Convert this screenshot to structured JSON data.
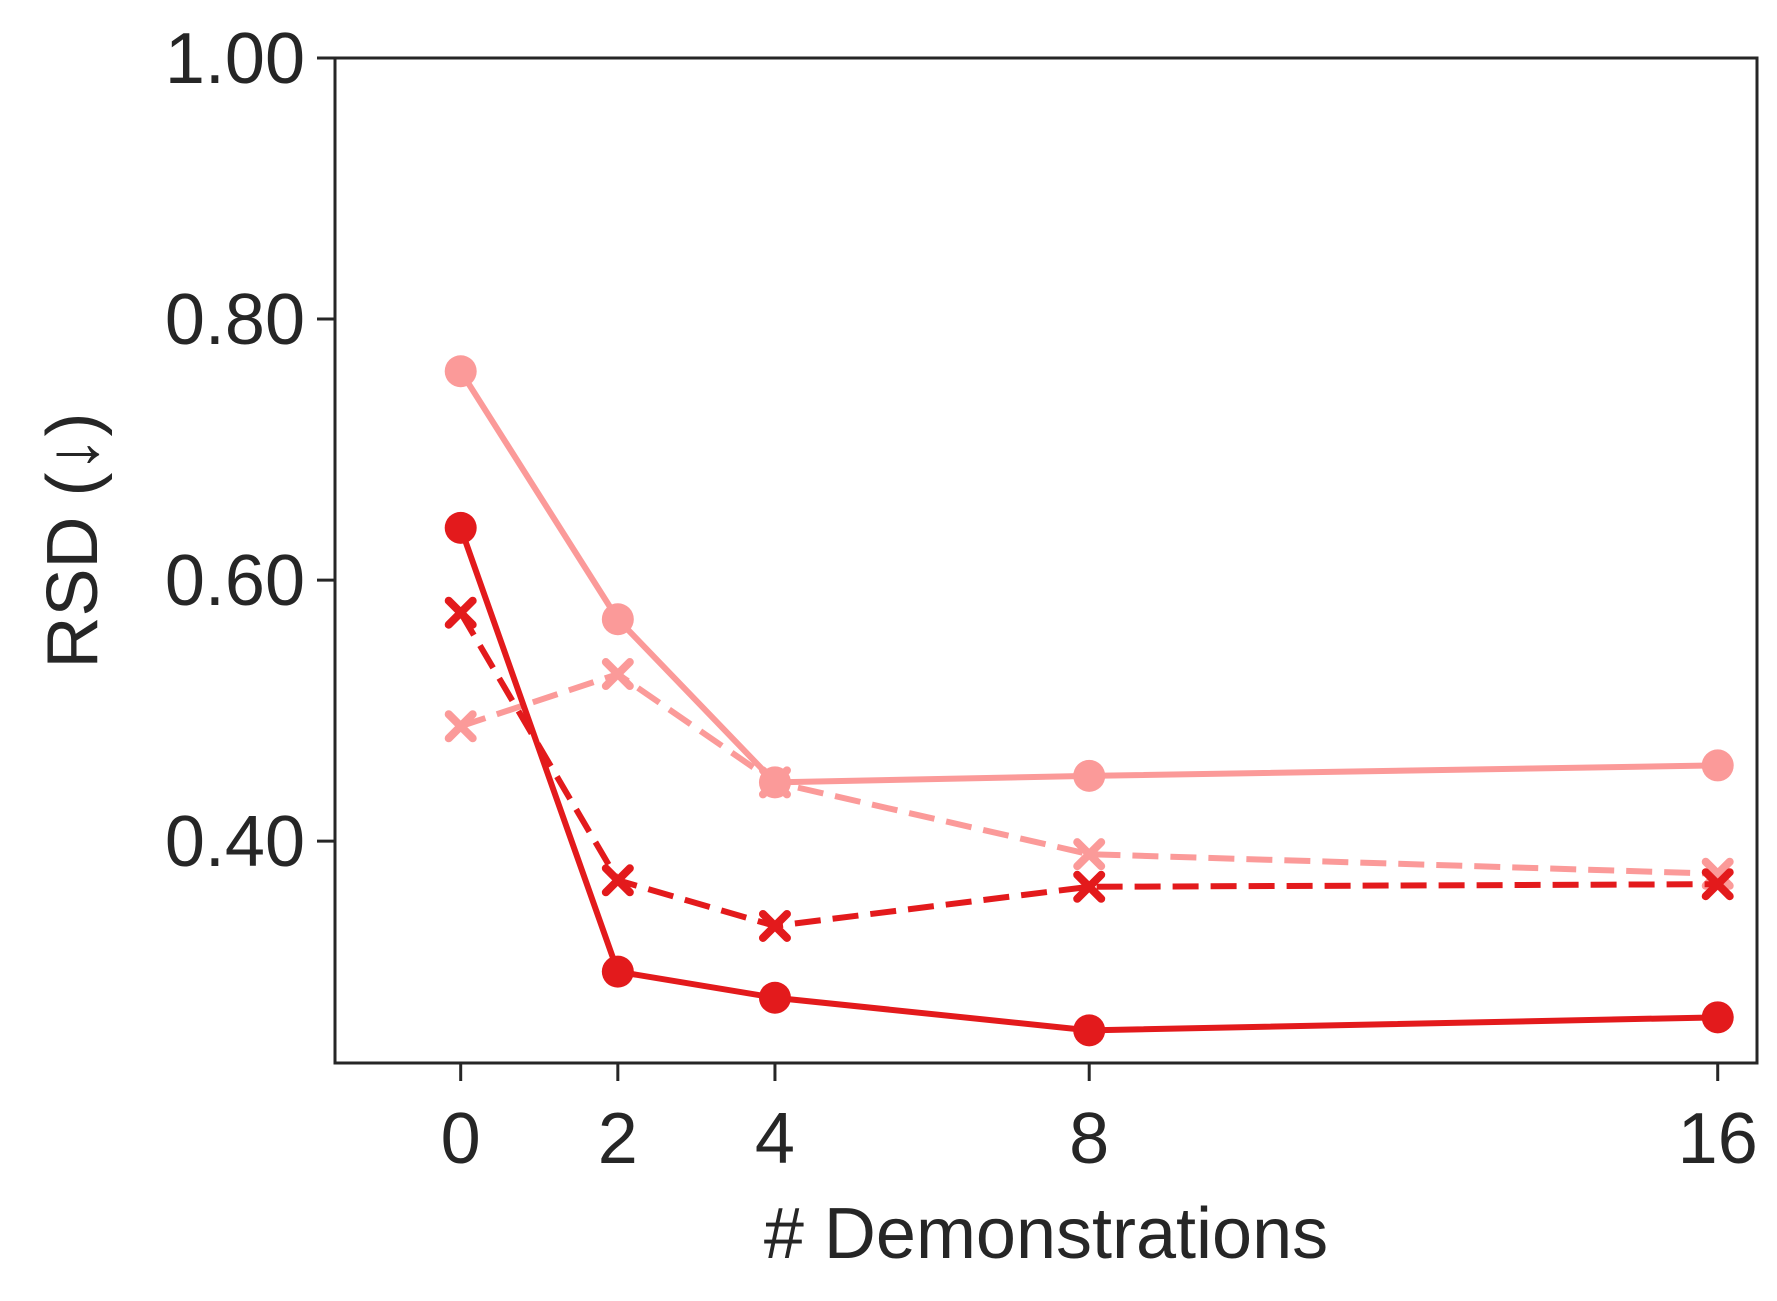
{
  "chart_data": {
    "type": "line",
    "title": "",
    "xlabel": "# Demonstrations",
    "ylabel": "RSD (↓)",
    "x": [
      0,
      2,
      4,
      8,
      16
    ],
    "xticks": [
      "0",
      "2",
      "4",
      "8",
      "16"
    ],
    "yticks": [
      "0.40",
      "0.60",
      "0.80",
      "1.00"
    ],
    "ytick_values": [
      0.4,
      0.6,
      0.8,
      1.0
    ],
    "ylim": [
      0.23,
      1.0
    ],
    "xlim": [
      -1.6,
      16.5
    ],
    "grid": false,
    "legend": "none",
    "series": [
      {
        "values": [
          0.76,
          0.57,
          0.445,
          0.45,
          0.458
        ],
        "color": "#fb9a99",
        "line_style": "solid",
        "marker": "circle"
      },
      {
        "values": [
          0.488,
          0.528,
          0.445,
          0.39,
          0.375
        ],
        "color": "#fb9a99",
        "line_style": "dashed",
        "marker": "x"
      },
      {
        "values": [
          0.64,
          0.3,
          0.28,
          0.255,
          0.265
        ],
        "color": "#e31a1c",
        "line_style": "solid",
        "marker": "circle"
      },
      {
        "values": [
          0.575,
          0.37,
          0.335,
          0.365,
          0.367
        ],
        "color": "#e31a1c",
        "line_style": "dashed",
        "marker": "x"
      }
    ]
  }
}
